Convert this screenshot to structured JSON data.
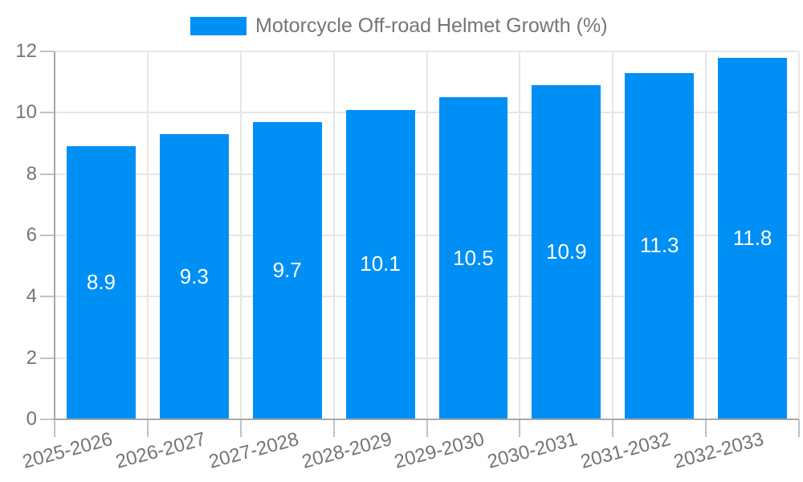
{
  "legend": {
    "label": "Motorcycle Off-road Helmet Growth (%)"
  },
  "chart_data": {
    "type": "bar",
    "title": "Motorcycle Off-road Helmet Growth (%)",
    "legend_position": "top",
    "categories": [
      "2025-2026",
      "2026-2027",
      "2027-2028",
      "2028-2029",
      "2029-2030",
      "2030-2031",
      "2031-2032",
      "2032-2033"
    ],
    "values": [
      8.9,
      9.3,
      9.7,
      10.1,
      10.5,
      10.9,
      11.3,
      11.8
    ],
    "xlabel": "",
    "ylabel": "",
    "ylim": [
      0,
      12
    ],
    "yticks": [
      0,
      2,
      4,
      6,
      8,
      10,
      12
    ],
    "grid": true,
    "colors": {
      "bar": "#008ff5",
      "bar_label": "#ffffff",
      "axis_text": "#757575",
      "grid_line": "#e6e6e6",
      "axis_line": "#a8a8a8",
      "tick_mark": "#c2c2c2",
      "background": "#ffffff"
    }
  }
}
